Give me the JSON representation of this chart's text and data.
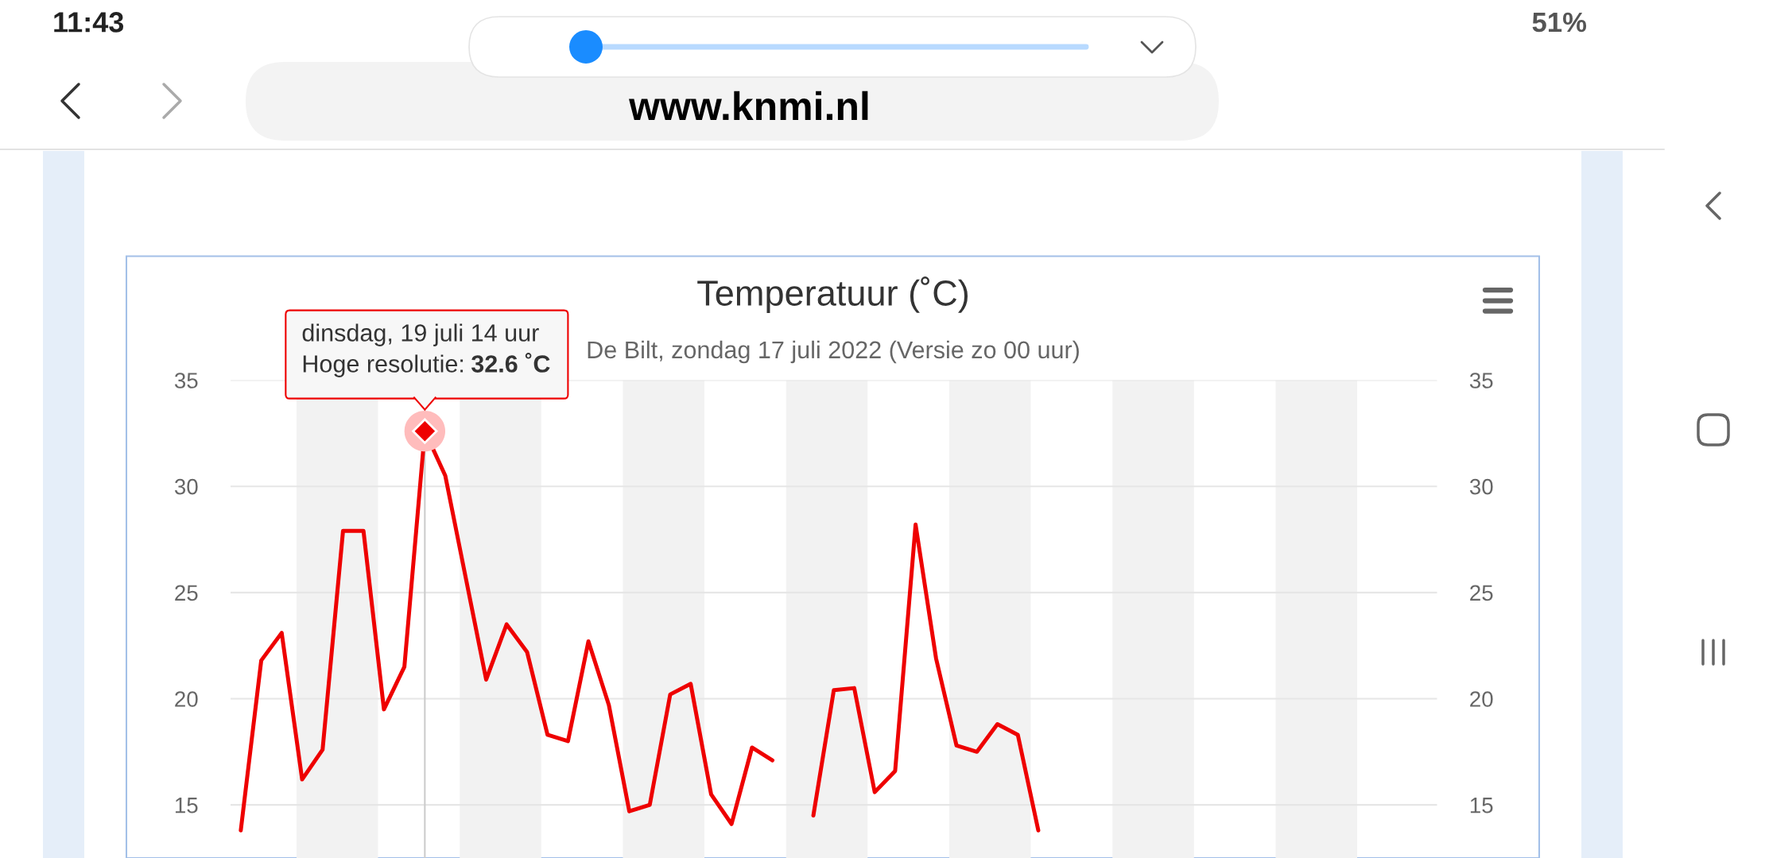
{
  "chart_data": {
    "type": "line",
    "title": "Temperatuur (˚C)",
    "subtitle": "De Bilt, zondag 17 juli 2022 (Versie zo 00 uur)",
    "categories": [
      null,
      null,
      null,
      null,
      null,
      null,
      null,
      null,
      null,
      null,
      null,
      null,
      null,
      null,
      null,
      null,
      null,
      null,
      null,
      null,
      null,
      null,
      null,
      null,
      null,
      null,
      null,
      null,
      null,
      null,
      null,
      null,
      null,
      null,
      null,
      null,
      null,
      null,
      null,
      null,
      null,
      null,
      null,
      null,
      null,
      null,
      null,
      null,
      null,
      null,
      null,
      null,
      null,
      null,
      null,
      null,
      null,
      null,
      null
    ],
    "series": [
      {
        "color": "#ee0000",
        "values": [
          13.8,
          21.8,
          23.1,
          16.2,
          17.6,
          27.9,
          27.9,
          19.5,
          21.5,
          32.6,
          30.5,
          25.7,
          20.9,
          23.5,
          22.2,
          18.3,
          18.0,
          22.7,
          19.7,
          14.7,
          15.0,
          20.2,
          20.7,
          15.5,
          14.1,
          17.7,
          17.1,
          null,
          14.5,
          20.4,
          20.5,
          15.6,
          16.6,
          28.2,
          21.9,
          17.8,
          17.5,
          18.8,
          18.3,
          13.8,
          null,
          null,
          null,
          null,
          null,
          null,
          null,
          null,
          null,
          null,
          null,
          null,
          null,
          null,
          null,
          null,
          null,
          null,
          null
        ]
      }
    ],
    "line_style": "solid",
    "ylim": [
      12.5,
      35
    ],
    "yticks": [
      15,
      20,
      25,
      30,
      35
    ],
    "y2lim": [
      12.5,
      35
    ],
    "y2ticks": [
      15,
      20,
      25,
      30,
      35
    ],
    "tick_labels": "y",
    "grid": "y",
    "annotations": [
      {
        "text": "dinsdag, 19 juli 14 uur\nHoge resolutie: 32.6 ˚C",
        "y": 32.6
      },
      "11:43",
      "www.knmi.nl",
      "51%"
    ]
  }
}
